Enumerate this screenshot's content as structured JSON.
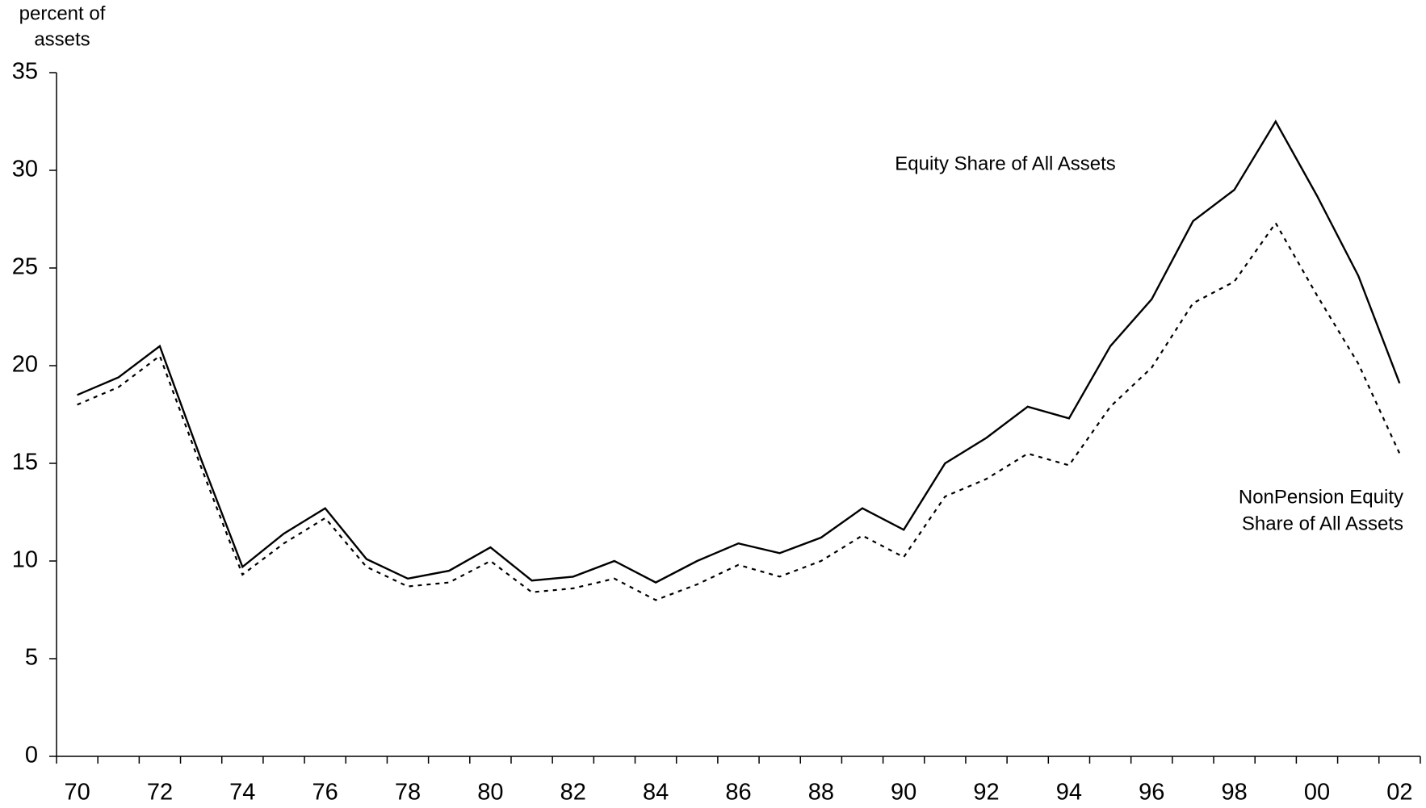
{
  "chart_data": {
    "type": "line",
    "y_label": [
      "percent of",
      "assets"
    ],
    "categories": [
      "70",
      null,
      "72",
      null,
      "74",
      null,
      "76",
      null,
      "78",
      null,
      "80",
      null,
      "82",
      null,
      "84",
      null,
      "86",
      null,
      "88",
      null,
      "90",
      null,
      "92",
      null,
      "94",
      null,
      "96",
      null,
      "98",
      null,
      "00",
      null,
      "02"
    ],
    "series": [
      {
        "label": [
          "Equity Share of All Assets"
        ],
        "color": "#000000",
        "dashed": false,
        "values": [
          18.5,
          19.4,
          21.0,
          15.2,
          9.7,
          11.4,
          12.7,
          10.1,
          9.1,
          9.5,
          10.7,
          9.0,
          9.2,
          10.0,
          8.9,
          10.0,
          10.9,
          10.4,
          11.2,
          12.7,
          11.6,
          15.0,
          16.3,
          17.9,
          17.3,
          21.0,
          23.4,
          27.4,
          29.0,
          32.5,
          28.7,
          24.6,
          19.1
        ]
      },
      {
        "label": [
          "NonPension Equity",
          "Share of All Assets"
        ],
        "color": "#000000",
        "dashed": true,
        "values": [
          18.0,
          18.9,
          20.5,
          14.8,
          9.3,
          10.9,
          12.2,
          9.7,
          8.7,
          8.9,
          10.0,
          8.4,
          8.6,
          9.1,
          8.0,
          8.8,
          9.8,
          9.2,
          10.0,
          11.3,
          10.2,
          13.3,
          14.2,
          15.5,
          14.9,
          17.9,
          19.9,
          23.2,
          24.3,
          27.3,
          23.6,
          20.1,
          15.5
        ]
      }
    ],
    "ylim": [
      0,
      35
    ],
    "yticks": [
      0,
      5,
      10,
      15,
      20,
      25,
      30,
      35
    ],
    "grid": false
  }
}
